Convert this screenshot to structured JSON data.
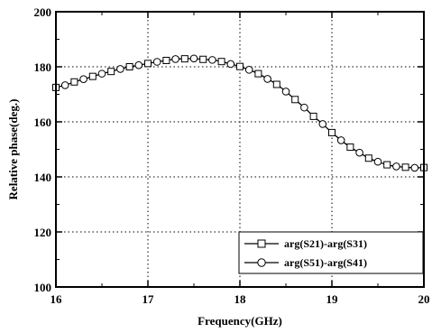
{
  "chart_data": {
    "type": "line",
    "title": "",
    "xlabel": "Frequency(GHz)",
    "ylabel": "Relative phase(deg.)",
    "xlim": [
      16,
      20
    ],
    "ylim": [
      100,
      200
    ],
    "x_ticks": [
      "16",
      "17",
      "18",
      "19",
      "20"
    ],
    "y_ticks": [
      "100",
      "120",
      "140",
      "160",
      "180",
      "200"
    ],
    "grid": true,
    "legend_position": "bottom-right",
    "series": [
      {
        "name": "arg(S21)-arg(S31)",
        "marker": "square",
        "color": "#000000",
        "x": [
          16.0,
          16.2,
          16.4,
          16.6,
          16.8,
          17.0,
          17.2,
          17.4,
          17.6,
          17.8,
          18.0,
          18.2,
          18.4,
          18.6,
          18.8,
          19.0,
          19.2,
          19.4,
          19.6,
          19.8,
          20.0
        ],
        "y": [
          172.5,
          174.5,
          176.5,
          178.3,
          180.0,
          181.2,
          182.3,
          182.9,
          182.7,
          181.9,
          180.1,
          177.5,
          173.6,
          168.1,
          162.0,
          156.1,
          150.8,
          146.8,
          144.4,
          143.5,
          143.4
        ]
      },
      {
        "name": "arg(S51)-arg(S41)",
        "marker": "circle",
        "color": "#000000",
        "x": [
          16.1,
          16.3,
          16.5,
          16.7,
          16.9,
          17.1,
          17.3,
          17.5,
          17.7,
          17.9,
          18.1,
          18.3,
          18.5,
          18.7,
          18.9,
          19.1,
          19.3,
          19.5,
          19.7,
          19.9
        ],
        "y": [
          173.3,
          175.5,
          177.5,
          179.2,
          180.6,
          181.8,
          182.8,
          183.0,
          182.5,
          181.0,
          178.9,
          175.6,
          171.0,
          165.2,
          159.2,
          153.3,
          148.8,
          145.5,
          143.8,
          143.3
        ]
      }
    ]
  }
}
